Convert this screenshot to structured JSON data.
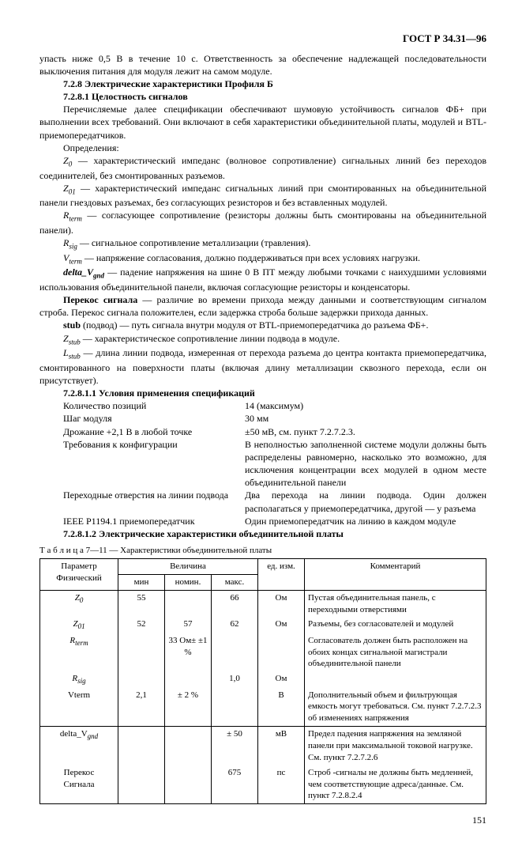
{
  "header": "ГОСТ Р 34.31—96",
  "p1": "упасть ниже 0,5 В в течение 10 с. Ответственность за обеспечение надлежащей последовательности выключения питания для модуля лежит на самом модуле.",
  "s728": "7.2.8 Электрические характеристики Профиля Б",
  "s7281": "7.2.8.1 Целостность сигналов",
  "p2": "Перечисляемые далее спецификации обеспечивают шумовую устойчивость сигналов ФБ+ при выполнении всех требований. Они включают в себя характеристики объединительной платы, модулей и BTL-приемопередатчиков.",
  "def_label": "Определения:",
  "def_z0": " — характеристический импеданс (волновое сопротивление) сигнальных линий без переходов соединителей, без смонтированных разъемов.",
  "def_z01": " — характеристический импеданс сигнальных линий при смонтированных на объединительной панели гнездовых разъемах, без согласующих резисторов и без вставленных модулей.",
  "def_rterm": " — согласующее сопротивление (резисторы должны быть смонтированы на объединительной панели).",
  "def_rsig": " — сигнальное сопротивление металлизации (травления).",
  "def_vterm": " — напряжение согласования, должно поддерживаться при всех условиях нагрузки.",
  "def_deltavgnd": " — падение напряжения на шине 0 В ПТ между любыми точками с наихудшими условиями использования объединительной панели, включая согласующие резисторы и конденсаторы.",
  "def_skew_bold": "Перекос сигнала",
  "def_skew": " — различие во времени прихода между данными и соответствующим сигналом строба. Перекос сигнала положителен, если задержка строба больше задержки прихода данных.",
  "def_stub_bold": "stub",
  "def_stub": " (подвод) — путь сигнала внутри модуля от BTL-приемопередатчика до разъема ФБ+.",
  "def_zstub": " — характеристическое сопротивление линии подвода в модуле.",
  "def_lstub": " — длина линии подвода, измеренная от перехода разъема до центра контакта приемопередатчика, смонтированного на поверхности платы (включая длину металлизации сквозного перехода, если он присутствует).",
  "s72811": "7.2.8.1.1 Условия применения спецификаций",
  "spec": {
    "r1_label": "Количество позиций",
    "r1_value": "14 (максимум)",
    "r2_label": "Шаг модуля",
    "r2_value": "30 мм",
    "r3_label": "Дрожание +2,1 В в любой точке",
    "r3_value": "±50 мВ, см. пункт 7.2.7.2.3.",
    "r4_label": "Требования к конфигурации",
    "r4_value": "В неполностью заполненной системе модули должны быть распределены равномерно, насколько это возможно, для исключения концентрации всех модулей в одном месте объединительной панели",
    "r5_label": "Переходные отверстия на линии подвода",
    "r5_value": "Два перехода на линии подвода. Один должен располагаться у приемопередатчика, другой — у разъема",
    "r6_label": "IEEE P1194.1 приемопередатчик",
    "r6_value": "Один приемопередатчик на линию в каждом модуле"
  },
  "s72812": "7.2.8.1.2 Электрические характеристики объединительной платы",
  "table_caption": "Т а б л и ц а 7—11 — Характеристики объединительной платы",
  "th": {
    "param": "Параметр Физический",
    "val": "Величина",
    "min": "мин",
    "nom": "номин.",
    "max": "макс.",
    "unit": "ед. изм.",
    "comment": "Комментарий"
  },
  "tbl": {
    "r1_param": "Z",
    "r1_sub": "0",
    "r1_min": "55",
    "r1_nom": "",
    "r1_max": "66",
    "r1_unit": "Ом",
    "r1_comment": "Пустая объединительная панель, с переходными отверстиями",
    "r2_param": "Z",
    "r2_sub": "01",
    "r2_min": "52",
    "r2_nom": "57",
    "r2_max": "62",
    "r2_unit": "Ом",
    "r2_comment": "Разъемы, без согласователей и модулей",
    "r3_param": "R",
    "r3_sub": "term",
    "r3_nom": "33 Ом± ±1 %",
    "r3_comment": "Согласователь должен быть расположен на обоих концах сигнальной магистрали объединительной панели",
    "r4_param": "R",
    "r4_sub": "sig",
    "r4_max": "1,0",
    "r4_unit": "Ом",
    "r5_param": "Vterm",
    "r5_min": "2,1",
    "r5_nom": "± 2 %",
    "r5_unit": "В",
    "r5_comment": " Дополнительный объем и фильтрующая емкость могут требоваться. См. пункт 7.2.7.2.3 об изменениях напряжения",
    "r6_param": "delta_V",
    "r6_sub": "gnd",
    "r6_max": "± 50",
    "r6_unit": "мВ",
    "r6_comment": "Предел падения напряжения на земляной панели при максимальной токовой нагрузке. См. пункт 7.2.7.2.6",
    "r7_param1": "Перекос",
    "r7_param2": "Сигнала",
    "r7_max": "675",
    "r7_unit": "пс",
    "r7_comment": "Строб -сигналы не должны быть медленней, чем соответствующие адреса/данные. См. пункт 7.2.8.2.4"
  },
  "page": "151"
}
